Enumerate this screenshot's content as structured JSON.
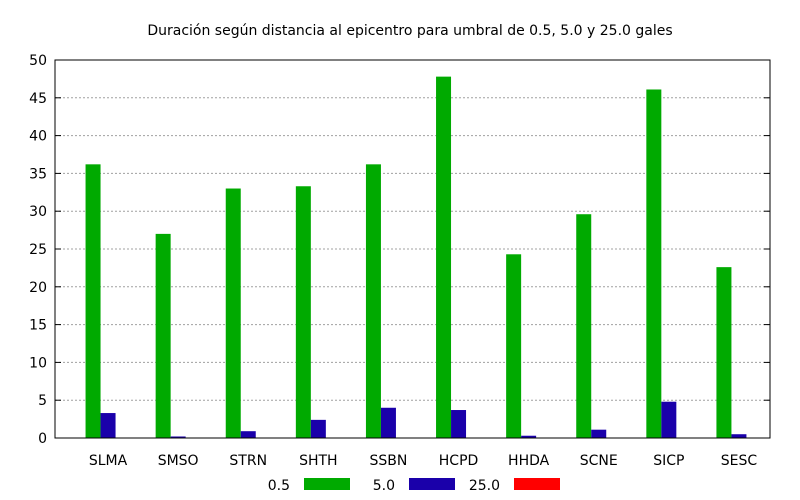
{
  "chart_data": {
    "type": "bar",
    "title": "Duración según distancia al epicentro para umbral de 0.5, 5.0 y 25.0 gales",
    "xlabel": "",
    "ylabel": "",
    "categories": [
      "SLMA",
      "SMSO",
      "STRN",
      "SHTH",
      "SSBN",
      "HCPD",
      "HHDA",
      "SCNE",
      "SICP",
      "SESC"
    ],
    "ylim": [
      0,
      50
    ],
    "yticks": [
      "0",
      "5",
      "10",
      "15",
      "20",
      "25",
      "30",
      "35",
      "40",
      "45",
      "50"
    ],
    "grid": true,
    "legend_position": "bottom",
    "series": [
      {
        "name": "0.5",
        "color": "#00aa00",
        "values": [
          36.2,
          27.0,
          33.0,
          33.3,
          36.2,
          47.8,
          24.3,
          29.6,
          46.1,
          22.6
        ]
      },
      {
        "name": "5.0",
        "color": "#1a00aa",
        "values": [
          3.3,
          0.2,
          0.9,
          2.4,
          4.0,
          3.7,
          0.3,
          1.1,
          4.8,
          0.5
        ]
      },
      {
        "name": "25.0",
        "color": "#ff0000",
        "values": [
          0,
          0,
          0,
          0,
          0,
          0,
          0,
          0,
          0,
          0
        ]
      }
    ]
  }
}
